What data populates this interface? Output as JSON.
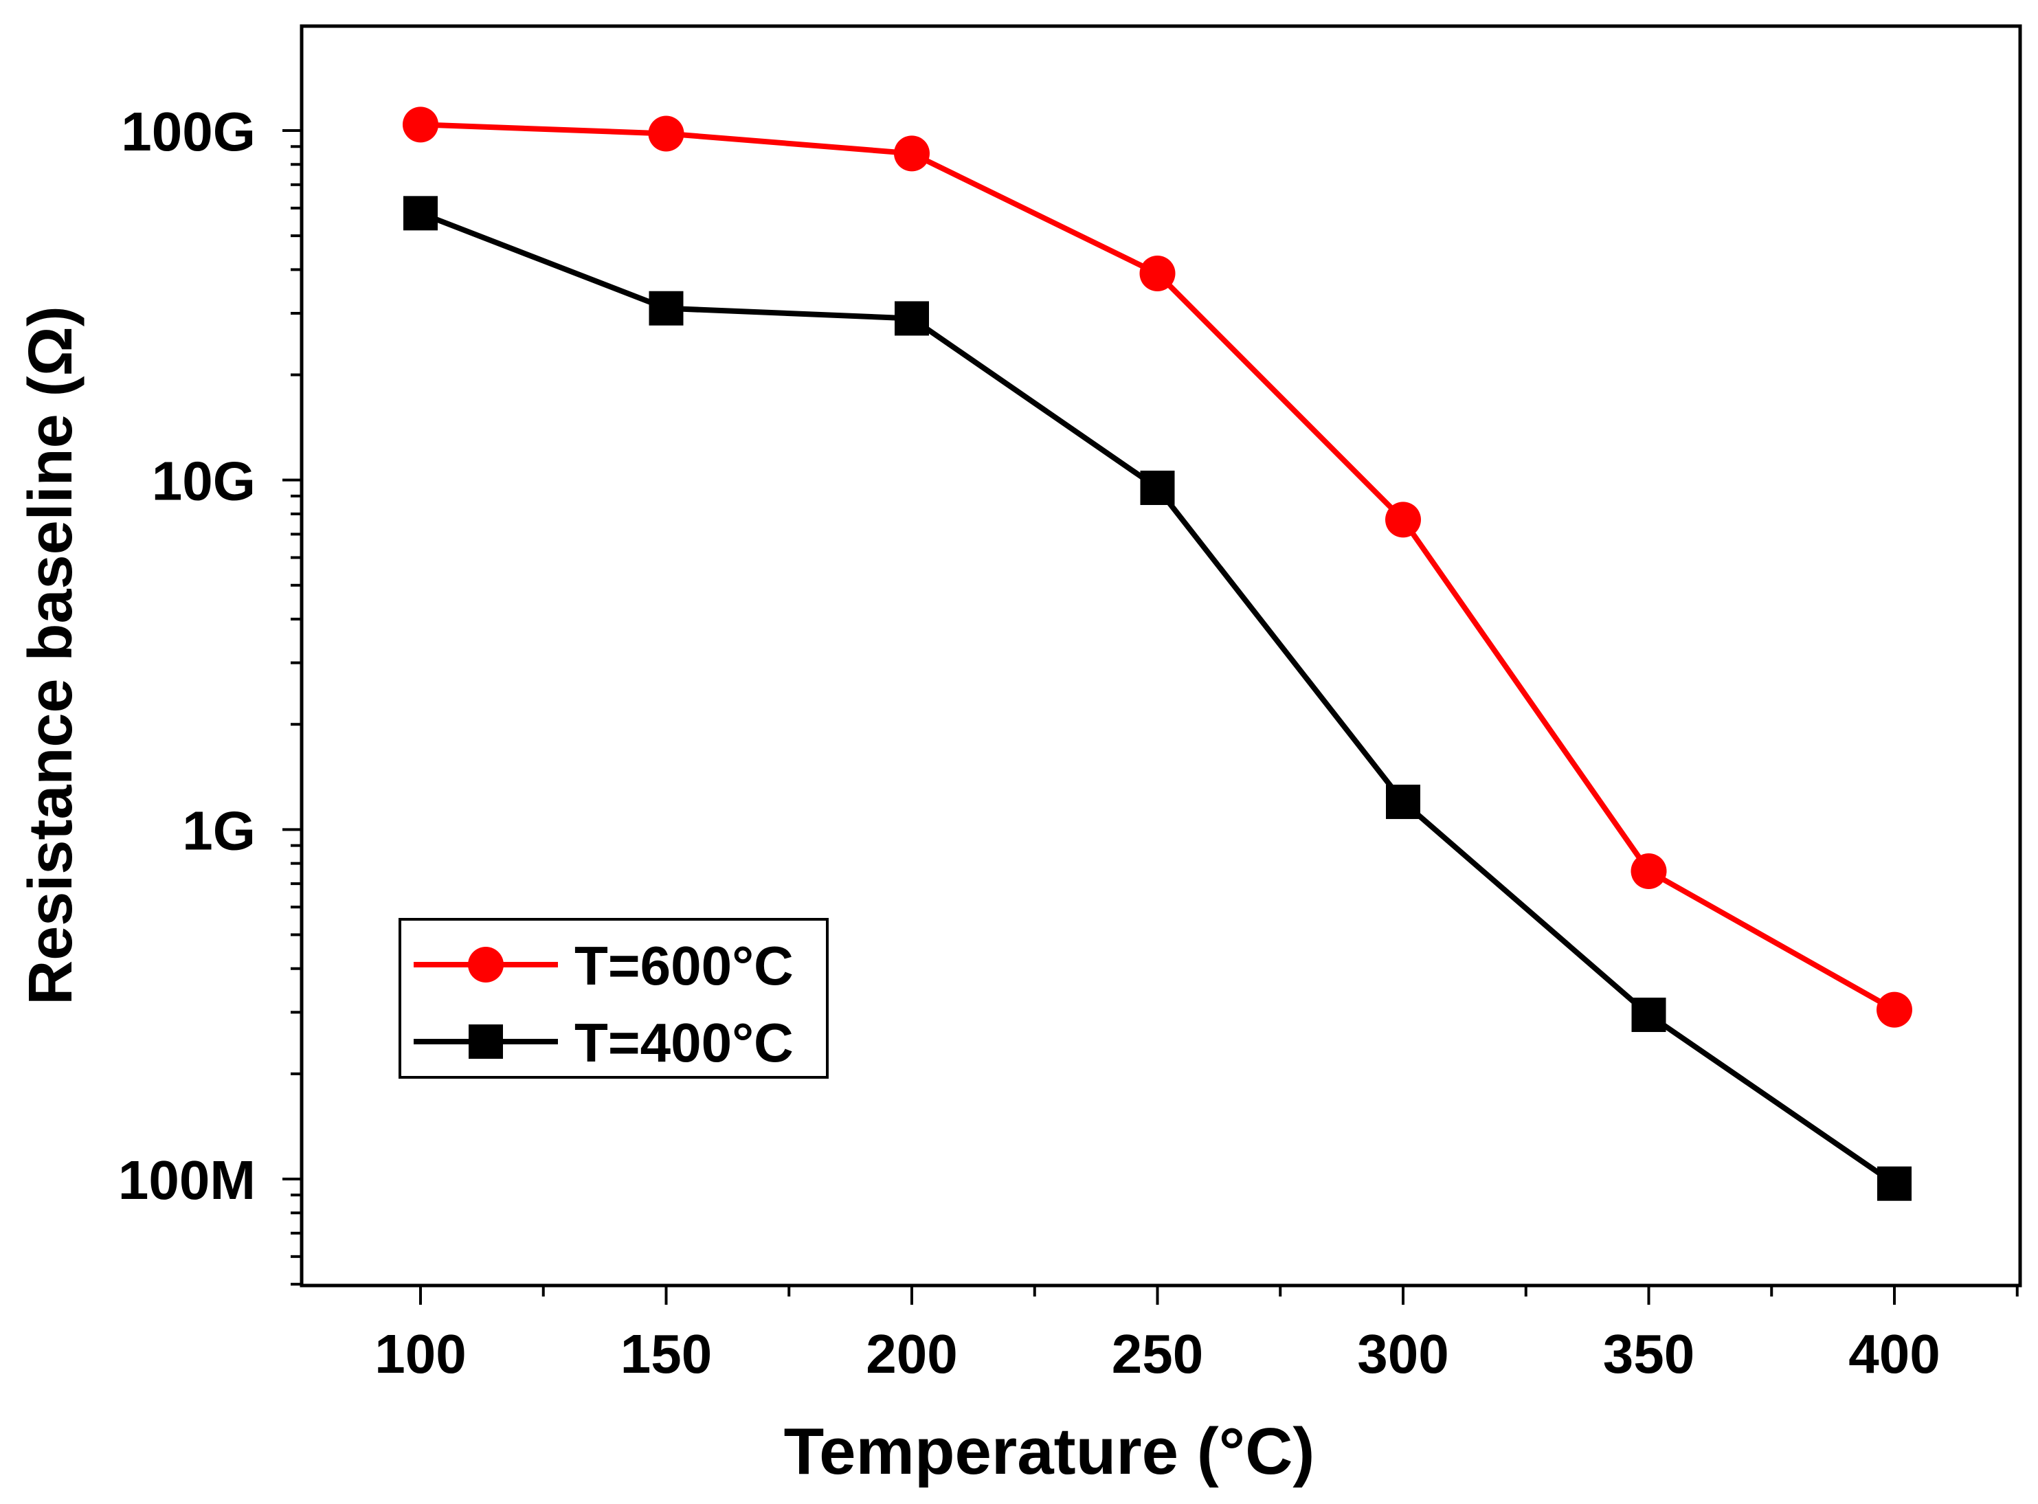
{
  "chart_data": {
    "type": "line",
    "title": "",
    "xlabel": "Temperature (°C)",
    "ylabel": "Resistance baseline (Ω)",
    "xlim": [
      75,
      425
    ],
    "ylim": [
      50000000,
      200000000000
    ],
    "yscale": "log",
    "x": [
      100,
      150,
      200,
      250,
      300,
      350,
      400
    ],
    "x_ticks": [
      {
        "value": 100,
        "label": "100"
      },
      {
        "value": 150,
        "label": "150"
      },
      {
        "value": 200,
        "label": "200"
      },
      {
        "value": 250,
        "label": "250"
      },
      {
        "value": 300,
        "label": "300"
      },
      {
        "value": 350,
        "label": "350"
      },
      {
        "value": 400,
        "label": "400"
      }
    ],
    "y_ticks": [
      {
        "value": 100000000,
        "label": "100M"
      },
      {
        "value": 1000000000,
        "label": "1G"
      },
      {
        "value": 10000000000,
        "label": "10G"
      },
      {
        "value": 100000000000,
        "label": "100G"
      }
    ],
    "series": [
      {
        "name": "T=600°C",
        "color": "#ff0000",
        "marker": "circle",
        "values": [
          104000000000,
          98000000000,
          86000000000,
          39000000000,
          7700000000,
          760000000,
          305000000
        ]
      },
      {
        "name": "T=400°C",
        "color": "#000000",
        "marker": "square",
        "values": [
          58000000000,
          31000000000,
          29000000000,
          9500000000,
          1200000000,
          295000000,
          97000000
        ]
      }
    ],
    "legend_position": "lower-left"
  }
}
